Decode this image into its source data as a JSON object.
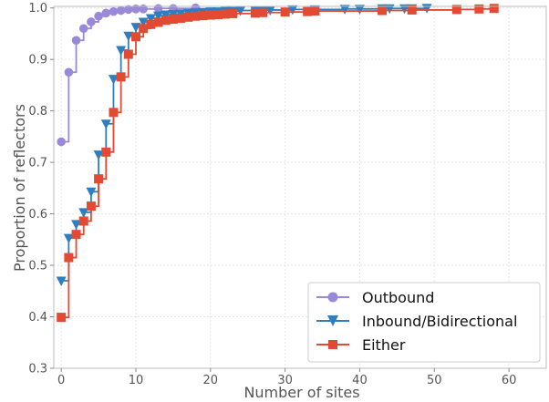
{
  "chart_data": {
    "type": "line",
    "xlabel": "Number of sites",
    "ylabel": "Proportion of reflectors",
    "xlim": [
      -1,
      65
    ],
    "ylim": [
      0.3,
      1.003
    ],
    "xticks": [
      "0",
      "10",
      "20",
      "30",
      "40",
      "50",
      "60"
    ],
    "yticks": [
      "0.3",
      "0.4",
      "0.5",
      "0.6",
      "0.7",
      "0.8",
      "0.9",
      "1.0"
    ],
    "grid": true,
    "legend_position": "bottom-right",
    "step": "post",
    "series": [
      {
        "name": "Outbound",
        "color": "#9a88d8",
        "marker": "circle",
        "x": [
          0,
          1,
          2,
          3,
          4,
          5,
          6,
          7,
          8,
          9,
          10,
          11,
          13,
          15,
          18
        ],
        "y": [
          0.74,
          0.875,
          0.937,
          0.96,
          0.973,
          0.984,
          0.99,
          0.993,
          0.995,
          0.997,
          0.998,
          0.998,
          0.999,
          0.999,
          1.0
        ]
      },
      {
        "name": "Inbound/Bidirectional",
        "color": "#2e7fbf",
        "marker": "triangle-down",
        "x": [
          0,
          1,
          2,
          3,
          4,
          5,
          6,
          7,
          8,
          9,
          10,
          11,
          12,
          13,
          14,
          15,
          16,
          17,
          18,
          19,
          20,
          21,
          22,
          23,
          24,
          26,
          27,
          28,
          31,
          34,
          38,
          40,
          43,
          44,
          46,
          47,
          49
        ],
        "y": [
          0.47,
          0.553,
          0.58,
          0.603,
          0.643,
          0.715,
          0.775,
          0.862,
          0.918,
          0.946,
          0.963,
          0.973,
          0.98,
          0.985,
          0.987,
          0.988,
          0.989,
          0.99,
          0.991,
          0.992,
          0.993,
          0.993,
          0.994,
          0.994,
          0.995,
          0.995,
          0.996,
          0.996,
          0.997,
          0.997,
          0.998,
          0.998,
          0.999,
          0.999,
          0.999,
          0.999,
          1.0
        ]
      },
      {
        "name": "Either",
        "color": "#e24a33",
        "marker": "square",
        "x": [
          0,
          1,
          2,
          3,
          4,
          5,
          6,
          7,
          8,
          9,
          10,
          11,
          12,
          13,
          14,
          15,
          16,
          17,
          18,
          19,
          20,
          21,
          22,
          23,
          26,
          27,
          30,
          33,
          34,
          43,
          47,
          53,
          56,
          58
        ],
        "y": [
          0.399,
          0.515,
          0.56,
          0.586,
          0.615,
          0.668,
          0.72,
          0.797,
          0.866,
          0.91,
          0.944,
          0.96,
          0.968,
          0.972,
          0.976,
          0.978,
          0.98,
          0.982,
          0.984,
          0.985,
          0.986,
          0.987,
          0.988,
          0.989,
          0.99,
          0.991,
          0.992,
          0.993,
          0.994,
          0.995,
          0.996,
          0.997,
          0.998,
          0.999
        ]
      }
    ]
  }
}
